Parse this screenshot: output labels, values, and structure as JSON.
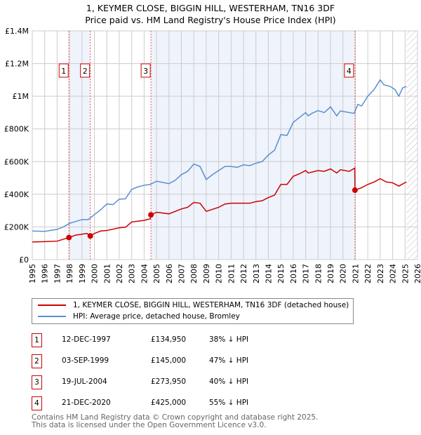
{
  "title": "1, KEYMER CLOSE, BIGGIN HILL, WESTERHAM, TN16 3DF",
  "subtitle": "Price paid vs. HM Land Registry's House Price Index (HPI)",
  "legend": [
    {
      "label": "1, KEYMER CLOSE, BIGGIN HILL, WESTERHAM, TN16 3DF (detached house)",
      "color": "#cc0000"
    },
    {
      "label": "HPI: Average price, detached house, Bromley",
      "color": "#5b8fd0"
    }
  ],
  "sales": [
    {
      "num": "1",
      "date": "12-DEC-1997",
      "price": "£134,950",
      "hpi": "38% ↓ HPI"
    },
    {
      "num": "2",
      "date": "03-SEP-1999",
      "price": "£145,000",
      "hpi": "47% ↓ HPI"
    },
    {
      "num": "3",
      "date": "19-JUL-2004",
      "price": "£273,950",
      "hpi": "40% ↓ HPI"
    },
    {
      "num": "4",
      "date": "21-DEC-2020",
      "price": "£425,000",
      "hpi": "55% ↓ HPI"
    }
  ],
  "footer": [
    "Contains HM Land Registry data © Crown copyright and database right 2025.",
    "This data is licensed under the Open Government Licence v3.0."
  ],
  "chart_data": {
    "type": "line",
    "xlim": [
      1995,
      2026
    ],
    "ylim": [
      0,
      1400000
    ],
    "yticks": [
      {
        "v": 0,
        "l": "£0"
      },
      {
        "v": 200000,
        "l": "£200K"
      },
      {
        "v": 400000,
        "l": "£400K"
      },
      {
        "v": 600000,
        "l": "£600K"
      },
      {
        "v": 800000,
        "l": "£800K"
      },
      {
        "v": 1000000,
        "l": "£1M"
      },
      {
        "v": 1200000,
        "l": "£1.2M"
      },
      {
        "v": 1400000,
        "l": "£1.4M"
      }
    ],
    "xticks": [
      "1995",
      "1996",
      "1997",
      "1998",
      "1999",
      "2000",
      "2001",
      "2002",
      "2003",
      "2004",
      "2005",
      "2006",
      "2007",
      "2008",
      "2009",
      "2010",
      "2011",
      "2012",
      "2013",
      "2014",
      "2015",
      "2016",
      "2017",
      "2018",
      "2019",
      "2020",
      "2021",
      "2022",
      "2023",
      "2024",
      "2025",
      "2026"
    ],
    "sale_points": [
      {
        "x": 1997.95,
        "y": 134950,
        "label": "1"
      },
      {
        "x": 1999.67,
        "y": 145000,
        "label": "2"
      },
      {
        "x": 2004.55,
        "y": 273950,
        "label": "3"
      },
      {
        "x": 2020.97,
        "y": 425000,
        "label": "4"
      }
    ],
    "shaded_ranges": [
      [
        1997.95,
        1999.67
      ],
      [
        2004.55,
        2020.97
      ]
    ],
    "forecast_from": 2025.1,
    "series": [
      {
        "name": "HPI: Average price, detached house, Bromley",
        "color": "#5b8fd0",
        "points": [
          [
            1995,
            175
          ],
          [
            1996,
            173
          ],
          [
            1997,
            185
          ],
          [
            1997.5,
            200
          ],
          [
            1998,
            222
          ],
          [
            1999,
            245
          ],
          [
            1999.5,
            245
          ],
          [
            2000,
            275
          ],
          [
            2000.5,
            305
          ],
          [
            2001,
            340
          ],
          [
            2001.5,
            337
          ],
          [
            2002,
            370
          ],
          [
            2002.5,
            372
          ],
          [
            2003,
            430
          ],
          [
            2003.5,
            445
          ],
          [
            2004,
            455
          ],
          [
            2004.5,
            460
          ],
          [
            2005,
            480
          ],
          [
            2006,
            465
          ],
          [
            2006.5,
            485
          ],
          [
            2007,
            520
          ],
          [
            2007.5,
            540
          ],
          [
            2008,
            585
          ],
          [
            2008.5,
            570
          ],
          [
            2009,
            490
          ],
          [
            2009.5,
            520
          ],
          [
            2010,
            545
          ],
          [
            2010.5,
            570
          ],
          [
            2011,
            570
          ],
          [
            2011.5,
            565
          ],
          [
            2012,
            580
          ],
          [
            2012.5,
            575
          ],
          [
            2013,
            590
          ],
          [
            2013.5,
            600
          ],
          [
            2014,
            640
          ],
          [
            2014.5,
            670
          ],
          [
            2015,
            765
          ],
          [
            2015.5,
            760
          ],
          [
            2016,
            840
          ],
          [
            2016.5,
            870
          ],
          [
            2017,
            900
          ],
          [
            2017.2,
            880
          ],
          [
            2017.5,
            895
          ],
          [
            2018,
            912
          ],
          [
            2018.5,
            900
          ],
          [
            2019,
            935
          ],
          [
            2019.5,
            880
          ],
          [
            2019.8,
            910
          ],
          [
            2020.5,
            900
          ],
          [
            2020.9,
            895
          ],
          [
            2021.2,
            950
          ],
          [
            2021.5,
            940
          ],
          [
            2022,
            1000
          ],
          [
            2022.5,
            1040
          ],
          [
            2023,
            1100
          ],
          [
            2023.3,
            1070
          ],
          [
            2023.8,
            1060
          ],
          [
            2024.2,
            1040
          ],
          [
            2024.5,
            1000
          ],
          [
            2024.8,
            1050
          ],
          [
            2025.1,
            1060
          ]
        ]
      },
      {
        "name": "1, KEYMER CLOSE, BIGGIN HILL, WESTERHAM, TN16 3DF (detached house)",
        "color": "#cc0000",
        "points": [
          [
            1995,
            108
          ],
          [
            1996,
            110
          ],
          [
            1997,
            113
          ],
          [
            1997.95,
            134.95
          ],
          [
            1998.5,
            150
          ],
          [
            1999.4,
            160
          ],
          [
            1999.67,
            145
          ],
          [
            2000,
            160
          ],
          [
            2000.5,
            175
          ],
          [
            2001,
            178
          ],
          [
            2002,
            195
          ],
          [
            2002.5,
            198
          ],
          [
            2003,
            230
          ],
          [
            2003.5,
            235
          ],
          [
            2004,
            240
          ],
          [
            2004.5,
            250
          ],
          [
            2004.55,
            273.95
          ],
          [
            2005,
            290
          ],
          [
            2006,
            280
          ],
          [
            2007,
            310
          ],
          [
            2007.5,
            320
          ],
          [
            2008,
            350
          ],
          [
            2008.5,
            345
          ],
          [
            2009,
            295
          ],
          [
            2010,
            320
          ],
          [
            2010.5,
            340
          ],
          [
            2011,
            345
          ],
          [
            2012,
            345
          ],
          [
            2012.5,
            345
          ],
          [
            2013,
            355
          ],
          [
            2013.5,
            360
          ],
          [
            2014,
            380
          ],
          [
            2014.5,
            395
          ],
          [
            2015,
            460
          ],
          [
            2015.5,
            460
          ],
          [
            2016,
            510
          ],
          [
            2016.5,
            525
          ],
          [
            2017,
            545
          ],
          [
            2017.2,
            530
          ],
          [
            2018,
            545
          ],
          [
            2018.5,
            540
          ],
          [
            2019,
            555
          ],
          [
            2019.5,
            530
          ],
          [
            2019.8,
            550
          ],
          [
            2020.5,
            540
          ],
          [
            2020.95,
            560
          ],
          [
            2020.97,
            425
          ],
          [
            2021.5,
            440
          ],
          [
            2022,
            460
          ],
          [
            2022.5,
            475
          ],
          [
            2023,
            495
          ],
          [
            2023.5,
            475
          ],
          [
            2024,
            470
          ],
          [
            2024.5,
            450
          ],
          [
            2025.1,
            475
          ]
        ]
      }
    ]
  }
}
